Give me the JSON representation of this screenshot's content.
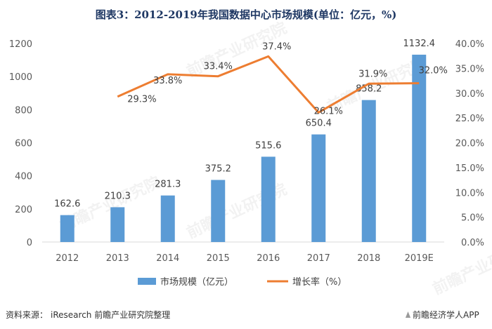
{
  "title": "图表3：2012-2019年我国数据中心市场规模(单位：亿元，%)",
  "source": {
    "prefix": "资料来源：",
    "text": "iResearch 前瞻产业研究院整理"
  },
  "brand": "前瞻经济学人APP",
  "watermark_text": "前瞻产业研究院",
  "colors": {
    "bar": "#5b9bd5",
    "line": "#ed7d31",
    "title": "#1f3864",
    "axis_text": "#595959"
  },
  "chart_data": {
    "type": "bar+line",
    "categories": [
      "2012",
      "2013",
      "2014",
      "2015",
      "2016",
      "2017",
      "2018",
      "2019E"
    ],
    "series": [
      {
        "name": "市场规模（亿元）",
        "type": "bar",
        "axis": "left",
        "values": [
          162.6,
          210.3,
          281.3,
          375.2,
          515.6,
          650.4,
          858.2,
          1132.4
        ],
        "labels": [
          "162.6",
          "210.3",
          "281.3",
          "375.2",
          "515.6",
          "650.4",
          "858.2",
          "1132.4"
        ]
      },
      {
        "name": "增长率（%）",
        "type": "line",
        "axis": "right",
        "values": [
          null,
          29.3,
          33.8,
          33.4,
          37.4,
          26.1,
          31.9,
          32.0
        ],
        "labels": [
          "",
          "29.3%",
          "33.8%",
          "33.4%",
          "37.4%",
          "26.1%",
          "31.9%",
          "32.0%"
        ]
      }
    ],
    "y_left": {
      "range": [
        0,
        1200
      ],
      "ticks": [
        0,
        200,
        400,
        600,
        800,
        1000,
        1200
      ],
      "tick_labels": [
        "0",
        "200",
        "400",
        "600",
        "800",
        "1000",
        "1200"
      ]
    },
    "y_right": {
      "range": [
        0,
        40
      ],
      "ticks": [
        0,
        5,
        10,
        15,
        20,
        25,
        30,
        35,
        40
      ],
      "tick_labels": [
        "0.0%",
        "5.0%",
        "10.0%",
        "15.0%",
        "20.0%",
        "25.0%",
        "30.0%",
        "35.0%",
        "40.0%"
      ]
    },
    "grid": false,
    "legend": "bottom"
  }
}
